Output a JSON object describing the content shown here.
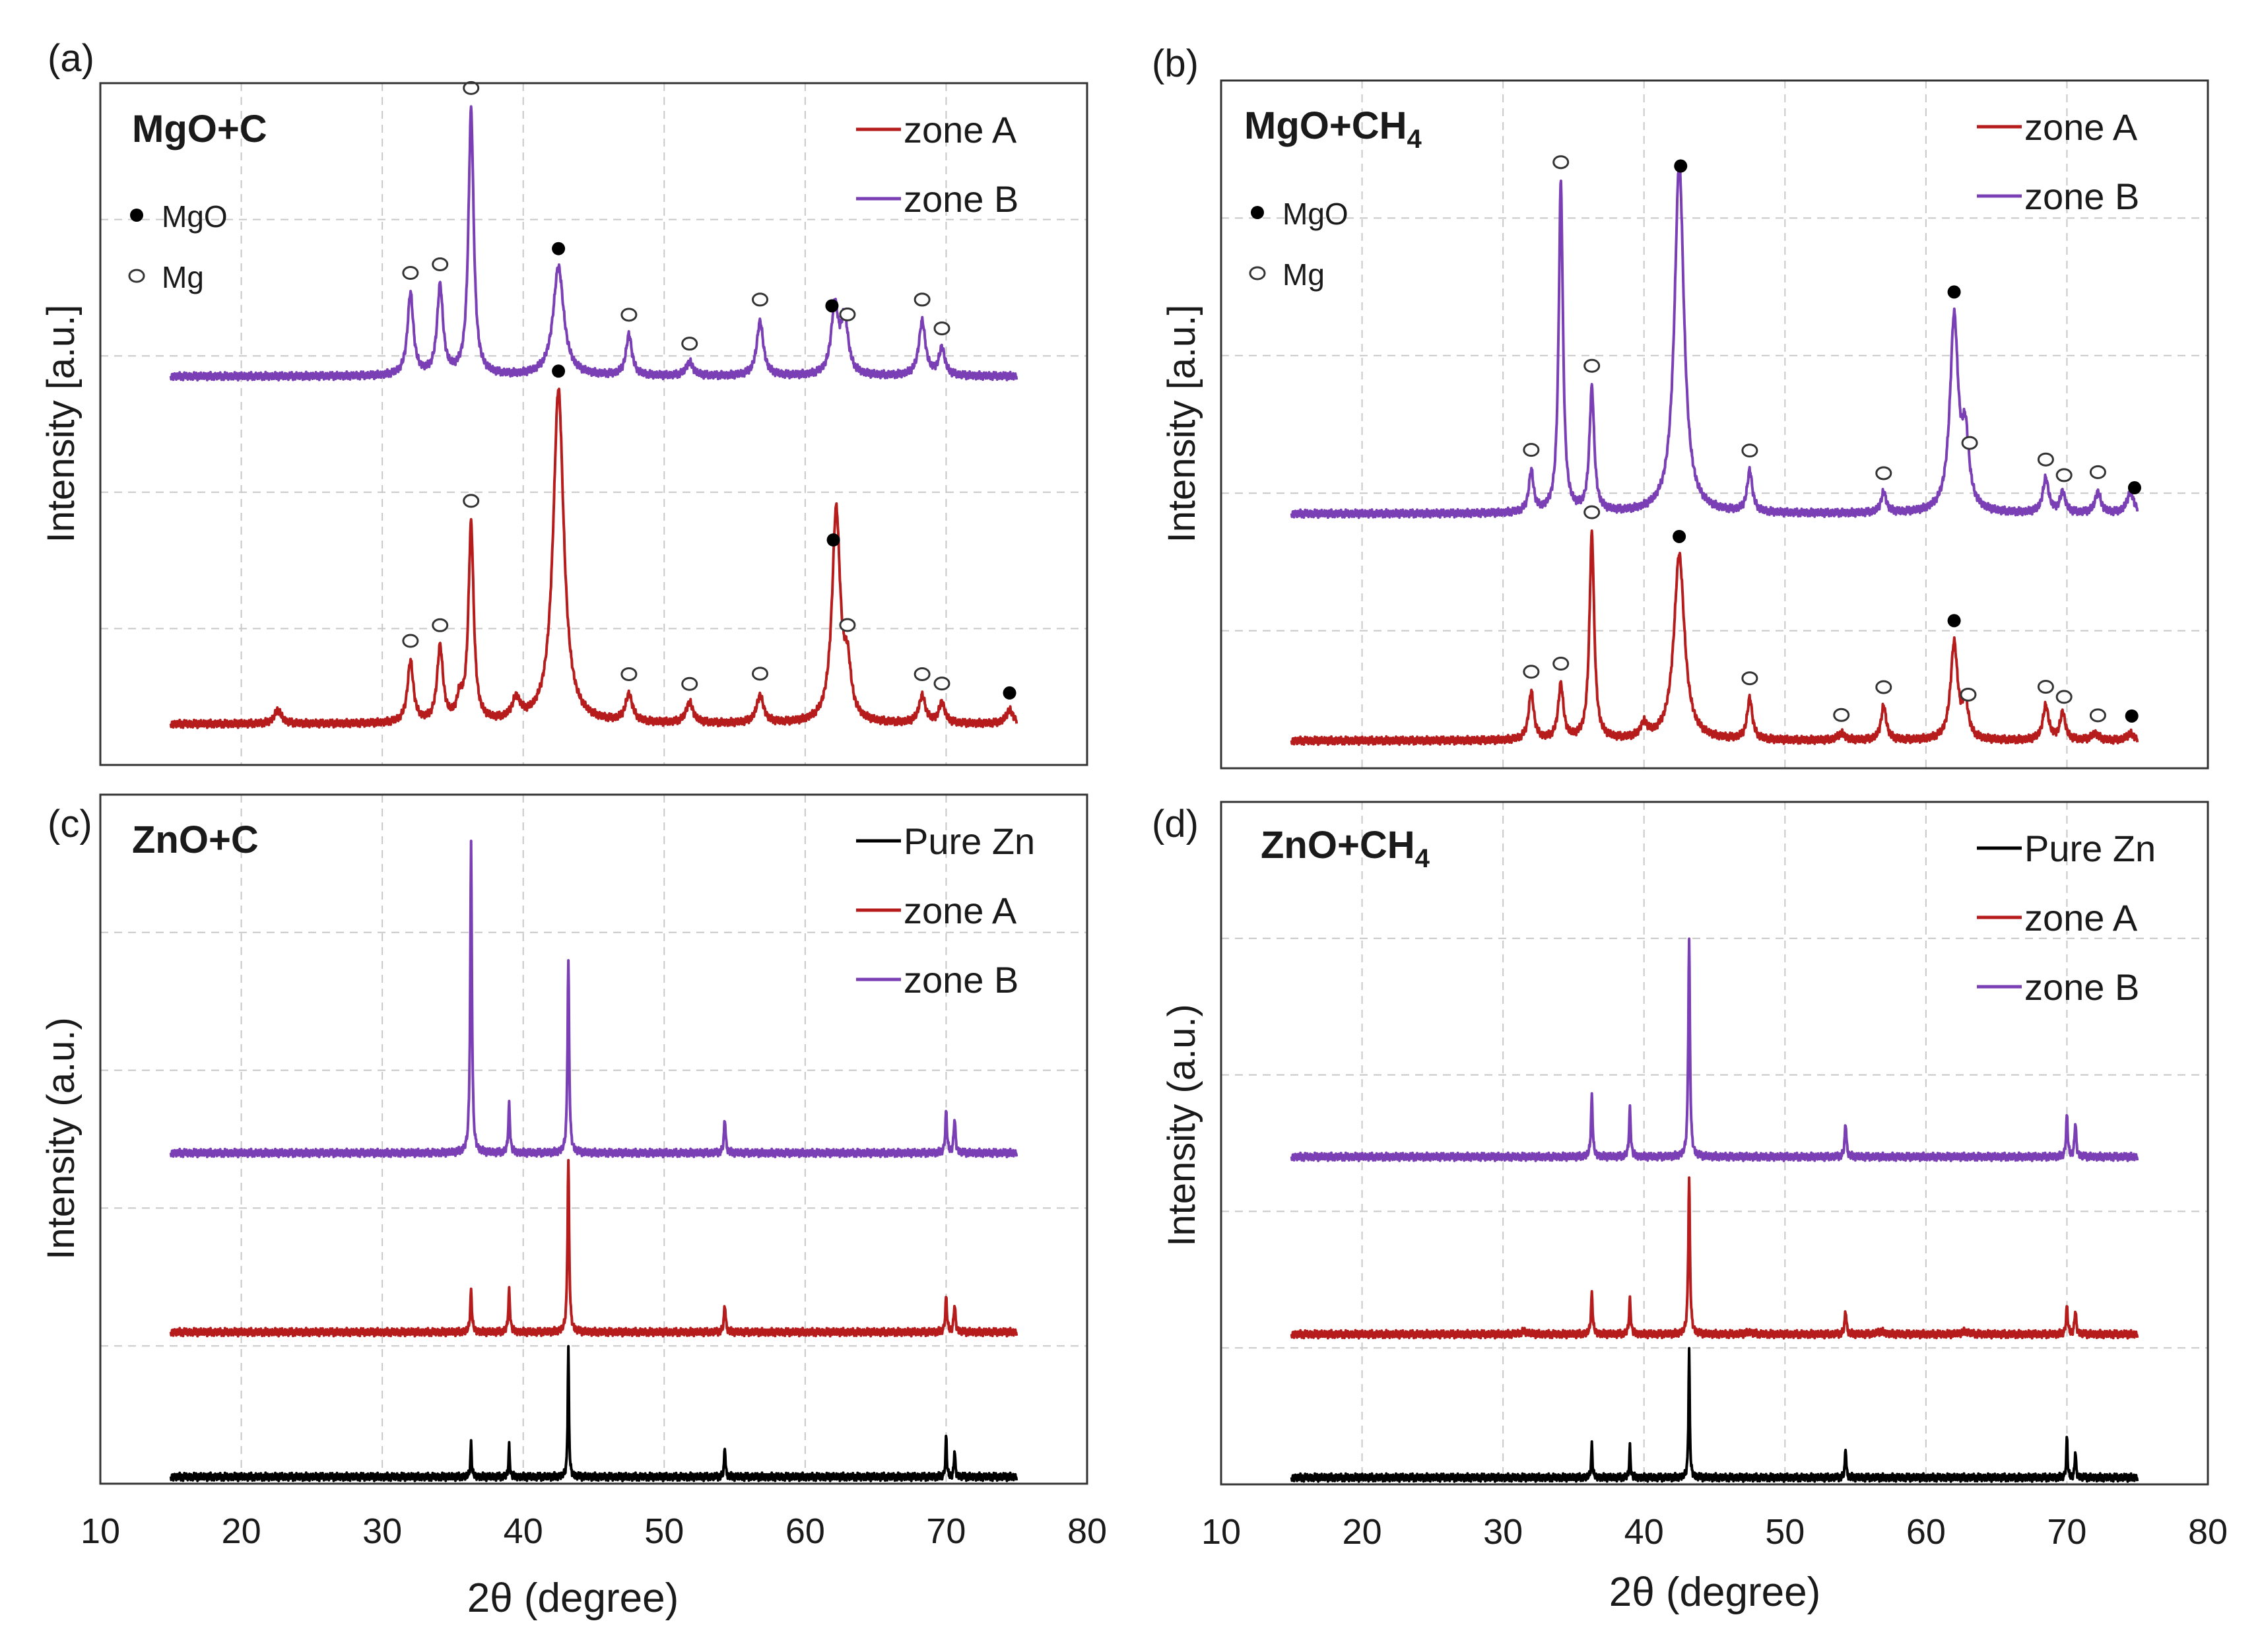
{
  "colors": {
    "zone_a": "#b71c1c",
    "zone_b": "#7b3fb5",
    "pure_zn": "#000000",
    "grid": "#c8c8c8",
    "frame": "#333333",
    "text": "#1a1a1a"
  },
  "x_axis": {
    "label": "2θ (degree)",
    "range": [
      10,
      80
    ],
    "ticks": [
      "10",
      "20",
      "30",
      "40",
      "50",
      "60",
      "70",
      "80"
    ]
  },
  "chart_data": [
    {
      "type": "line",
      "panel_label": "(a)",
      "title_main": "MgO+C",
      "title_sub": "",
      "ylabel": "Intensity [a.u.]",
      "xlabel": "2θ (degree)",
      "xlim": [
        10,
        80
      ],
      "ylim": [
        0,
        100
      ],
      "legend": [
        "zone A",
        "zone B"
      ],
      "markers_legend": [
        "MgO",
        "Mg"
      ],
      "series": [
        {
          "name": "zone B",
          "color_key": "zone_b",
          "x_start": 15,
          "x_end": 75,
          "baseline": 57,
          "peaks": [
            [
              32,
              12,
              0.25
            ],
            [
              34.1,
              13,
              0.25
            ],
            [
              36.3,
              39,
              0.22
            ],
            [
              42.5,
              16,
              0.45
            ],
            [
              47.5,
              6,
              0.25
            ],
            [
              51.8,
              2,
              0.3
            ],
            [
              56.8,
              8,
              0.28
            ],
            [
              62.1,
              10,
              0.3
            ],
            [
              62.8,
              8,
              0.3
            ],
            [
              68.3,
              8,
              0.28
            ],
            [
              69.7,
              4,
              0.25
            ]
          ],
          "markers": [
            [
              32,
              "o"
            ],
            [
              34.1,
              "o"
            ],
            [
              36.3,
              "o"
            ],
            [
              42.5,
              "f"
            ],
            [
              47.5,
              "o"
            ],
            [
              51.8,
              "o"
            ],
            [
              56.8,
              "o"
            ],
            [
              61.9,
              "f"
            ],
            [
              63,
              "o"
            ],
            [
              68.3,
              "o"
            ],
            [
              69.7,
              "o"
            ]
          ]
        },
        {
          "name": "zone A",
          "color_key": "zone_a",
          "x_start": 15,
          "x_end": 75,
          "baseline": 6,
          "peaks": [
            [
              22.6,
              2,
              0.3
            ],
            [
              32,
              9,
              0.25
            ],
            [
              34.1,
              11,
              0.25
            ],
            [
              35.5,
              3,
              0.25
            ],
            [
              36.3,
              29,
              0.22
            ],
            [
              39.5,
              3,
              0.35
            ],
            [
              42.5,
              49,
              0.45
            ],
            [
              47.5,
              4,
              0.3
            ],
            [
              51.8,
              3,
              0.3
            ],
            [
              56.8,
              4,
              0.3
            ],
            [
              62.2,
              31,
              0.35
            ],
            [
              63,
              7,
              0.3
            ],
            [
              68.3,
              4,
              0.28
            ],
            [
              69.7,
              3,
              0.25
            ],
            [
              74.5,
              2,
              0.3
            ]
          ],
          "markers": [
            [
              32,
              "o"
            ],
            [
              34.1,
              "o"
            ],
            [
              36.3,
              "o"
            ],
            [
              42.5,
              "f"
            ],
            [
              47.5,
              "o"
            ],
            [
              51.8,
              "o"
            ],
            [
              56.8,
              "o"
            ],
            [
              62,
              "f"
            ],
            [
              63,
              "o"
            ],
            [
              68.3,
              "o"
            ],
            [
              69.7,
              "o"
            ],
            [
              74.5,
              "f"
            ]
          ]
        }
      ]
    },
    {
      "type": "line",
      "panel_label": "(b)",
      "title_main": "MgO+CH",
      "title_sub": "4",
      "ylabel": "Intensity [a.u.]",
      "xlabel": "2θ (degree)",
      "xlim": [
        10,
        80
      ],
      "ylim": [
        0,
        100
      ],
      "legend": [
        "zone A",
        "zone B"
      ],
      "markers_legend": [
        "MgO",
        "Mg"
      ],
      "series": [
        {
          "name": "zone B",
          "color_key": "zone_b",
          "x_start": 15,
          "x_end": 75,
          "baseline": 37,
          "peaks": [
            [
              32,
              6,
              0.2
            ],
            [
              34.1,
              48,
              0.18
            ],
            [
              36.3,
              18,
              0.2
            ],
            [
              42.5,
              51,
              0.4
            ],
            [
              47.5,
              6,
              0.22
            ],
            [
              57,
              3,
              0.22
            ],
            [
              62,
              28,
              0.35
            ],
            [
              62.8,
              10,
              0.3
            ],
            [
              68.5,
              5,
              0.25
            ],
            [
              69.7,
              3,
              0.22
            ],
            [
              72.2,
              3,
              0.25
            ],
            [
              74.5,
              3,
              0.3
            ]
          ],
          "markers": [
            [
              32,
              "o"
            ],
            [
              34.1,
              "o"
            ],
            [
              36.3,
              "o"
            ],
            [
              42.6,
              "f"
            ],
            [
              47.5,
              "o"
            ],
            [
              57,
              "o"
            ],
            [
              62,
              "f"
            ],
            [
              63.1,
              "o"
            ],
            [
              68.5,
              "o"
            ],
            [
              69.8,
              "o"
            ],
            [
              72.2,
              "o"
            ],
            [
              74.8,
              "f"
            ]
          ]
        },
        {
          "name": "zone A",
          "color_key": "zone_a",
          "x_start": 15,
          "x_end": 75,
          "baseline": 4,
          "peaks": [
            [
              32,
              7,
              0.22
            ],
            [
              34.1,
              8,
              0.22
            ],
            [
              36.3,
              30,
              0.2
            ],
            [
              40,
              2,
              0.3
            ],
            [
              42.5,
              27,
              0.45
            ],
            [
              47.5,
              6,
              0.22
            ],
            [
              54,
              1,
              0.3
            ],
            [
              57,
              5,
              0.22
            ],
            [
              62,
              14,
              0.3
            ],
            [
              62.8,
              5,
              0.25
            ],
            [
              68.5,
              5,
              0.25
            ],
            [
              69.7,
              4,
              0.22
            ],
            [
              72,
              1,
              0.3
            ],
            [
              74.5,
              1,
              0.3
            ]
          ],
          "markers": [
            [
              32,
              "o"
            ],
            [
              34.1,
              "o"
            ],
            [
              36.3,
              "o"
            ],
            [
              42.5,
              "f"
            ],
            [
              47.5,
              "o"
            ],
            [
              54,
              "o"
            ],
            [
              57,
              "o"
            ],
            [
              62,
              "f"
            ],
            [
              63,
              "o"
            ],
            [
              68.5,
              "o"
            ],
            [
              69.8,
              "o"
            ],
            [
              72.2,
              "o"
            ],
            [
              74.6,
              "f"
            ]
          ]
        }
      ]
    },
    {
      "type": "line",
      "panel_label": "(c)",
      "title_main": "ZnO+C",
      "title_sub": "",
      "ylabel": "Intensity (a.u.)",
      "xlabel": "2θ (degree)",
      "xlim": [
        10,
        80
      ],
      "ylim": [
        0,
        100
      ],
      "legend": [
        "Pure Zn",
        "zone A",
        "zone B"
      ],
      "markers_legend": [],
      "series": [
        {
          "name": "zone B",
          "color_key": "zone_b",
          "x_start": 15,
          "x_end": 75,
          "baseline": 48,
          "peaks": [
            [
              36.3,
              45,
              0.07
            ],
            [
              39,
              7,
              0.07
            ],
            [
              43.2,
              28,
              0.07
            ],
            [
              54.3,
              5,
              0.07
            ],
            [
              70,
              6,
              0.07
            ],
            [
              70.6,
              5,
              0.07
            ]
          ],
          "markers": []
        },
        {
          "name": "zone A",
          "color_key": "zone_a",
          "x_start": 15,
          "x_end": 75,
          "baseline": 22,
          "peaks": [
            [
              36.3,
              6,
              0.07
            ],
            [
              39,
              6,
              0.07
            ],
            [
              43.2,
              25,
              0.07
            ],
            [
              54.3,
              4,
              0.07
            ],
            [
              70,
              5,
              0.07
            ],
            [
              70.6,
              4,
              0.07
            ]
          ],
          "markers": []
        },
        {
          "name": "Pure Zn",
          "color_key": "pure_zn",
          "x_start": 15,
          "x_end": 75,
          "baseline": 1,
          "peaks": [
            [
              36.3,
              5,
              0.05
            ],
            [
              39,
              4.5,
              0.05
            ],
            [
              43.2,
              19,
              0.05
            ],
            [
              54.3,
              4.5,
              0.05
            ],
            [
              70,
              6,
              0.05
            ],
            [
              70.6,
              4,
              0.05
            ]
          ],
          "markers": []
        }
      ]
    },
    {
      "type": "line",
      "panel_label": "(d)",
      "title_main": "ZnO+CH",
      "title_sub": "4",
      "ylabel": "Intensity (a.u.)",
      "xlabel": "2θ (degree)",
      "xlim": [
        10,
        80
      ],
      "ylim": [
        0,
        100
      ],
      "legend": [
        "Pure Zn",
        "zone A",
        "zone B"
      ],
      "markers_legend": [],
      "series": [
        {
          "name": "zone B",
          "color_key": "zone_b",
          "x_start": 15,
          "x_end": 75,
          "baseline": 48,
          "peaks": [
            [
              36.3,
              9,
              0.07
            ],
            [
              39,
              7,
              0.07
            ],
            [
              43.2,
              32,
              0.07
            ],
            [
              54.3,
              5,
              0.07
            ],
            [
              70,
              6,
              0.07
            ],
            [
              70.6,
              5,
              0.07
            ]
          ],
          "markers": []
        },
        {
          "name": "zone A",
          "color_key": "zone_a",
          "x_start": 15,
          "x_end": 75,
          "baseline": 22,
          "peaks": [
            [
              31.5,
              0.4,
              0.3
            ],
            [
              36.3,
              6,
              0.07
            ],
            [
              39,
              5,
              0.07
            ],
            [
              43.2,
              23,
              0.07
            ],
            [
              47.5,
              0.3,
              0.3
            ],
            [
              54.3,
              3.5,
              0.07
            ],
            [
              56.8,
              0.4,
              0.3
            ],
            [
              62.8,
              0.4,
              0.3
            ],
            [
              70,
              4,
              0.07
            ],
            [
              70.6,
              3.5,
              0.07
            ]
          ],
          "markers": []
        },
        {
          "name": "Pure Zn",
          "color_key": "pure_zn",
          "x_start": 15,
          "x_end": 75,
          "baseline": 1,
          "peaks": [
            [
              36.3,
              5,
              0.05
            ],
            [
              39,
              4.5,
              0.05
            ],
            [
              43.2,
              19,
              0.05
            ],
            [
              54.3,
              4.5,
              0.05
            ],
            [
              70,
              6,
              0.05
            ],
            [
              70.6,
              4,
              0.05
            ]
          ],
          "markers": []
        }
      ]
    }
  ]
}
